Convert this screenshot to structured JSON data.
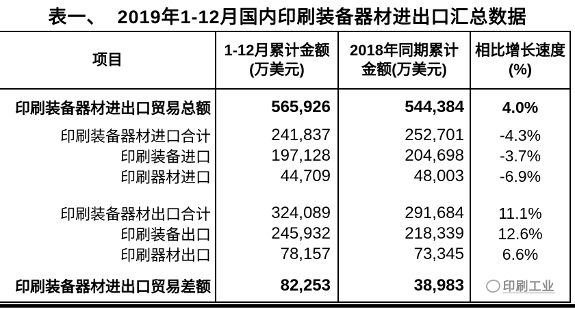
{
  "title": "表一、  2019年1-12月国内印刷装备器材进出口汇总数据",
  "table": {
    "headers": [
      {
        "line1": "项目",
        "line2": ""
      },
      {
        "line1": "1-12月累计金额",
        "line2": "(万美元)"
      },
      {
        "line1": "2018年同期累计",
        "line2": "金额(万美元)"
      },
      {
        "line1": "相比增长速度",
        "line2": "(%)"
      }
    ],
    "rows": [
      {
        "label": "印刷装备器材进出口贸易总额",
        "amount_2019": "565,926",
        "amount_2018": "544,384",
        "growth": "4.0%"
      },
      {
        "label": "印刷装备器材进口合计",
        "amount_2019": "241,837",
        "amount_2018": "252,701",
        "growth": "-4.3%"
      },
      {
        "label": "印刷装备进口",
        "amount_2019": "197,128",
        "amount_2018": "204,698",
        "growth": "-3.7%"
      },
      {
        "label": "印刷器材进口",
        "amount_2019": "44,709",
        "amount_2018": "48,003",
        "growth": "-6.9%"
      },
      {
        "label": "印刷装备器材出口合计",
        "amount_2019": "324,089",
        "amount_2018": "291,684",
        "growth": "11.1%"
      },
      {
        "label": "印刷装备出口",
        "amount_2019": "245,932",
        "amount_2018": "218,339",
        "growth": "12.6%"
      },
      {
        "label": "印刷器材出口",
        "amount_2019": "78,157",
        "amount_2018": "73,345",
        "growth": "6.6%"
      },
      {
        "label": "印刷装备器材进出口贸易差额",
        "amount_2019": "82,253",
        "amount_2018": "38,983",
        "growth": ""
      }
    ]
  },
  "watermark": {
    "text": "印刷工业"
  },
  "colors": {
    "border": "#000000",
    "text": "#000000",
    "watermark": "#8f8f8f",
    "background": "#ffffff"
  },
  "chart_data": {
    "type": "table",
    "title": "表一、 2019年1-12月国内印刷装备器材进出口汇总数据",
    "columns": [
      "项目",
      "1-12月累计金额(万美元)",
      "2018年同期累计金额(万美元)",
      "相比增长速度(%)"
    ],
    "rows": [
      {
        "项目": "印刷装备器材进出口贸易总额",
        "金额2019": 565926,
        "金额2018": 544384,
        "增长": "4.0%"
      },
      {
        "项目": "印刷装备器材进口合计",
        "金额2019": 241837,
        "金额2018": 252701,
        "增长": "-4.3%"
      },
      {
        "项目": "印刷装备进口",
        "金额2019": 197128,
        "金额2018": 204698,
        "增长": "-3.7%"
      },
      {
        "项目": "印刷器材进口",
        "金额2019": 44709,
        "金额2018": 48003,
        "增长": "-6.9%"
      },
      {
        "项目": "印刷装备器材出口合计",
        "金额2019": 324089,
        "金额2018": 291684,
        "增长": "11.1%"
      },
      {
        "项目": "印刷装备出口",
        "金额2019": 245932,
        "金额2018": 218339,
        "增长": "12.6%"
      },
      {
        "项目": "印刷器材出口",
        "金额2019": 78157,
        "金额2018": 73345,
        "增长": "6.6%"
      },
      {
        "项目": "印刷装备器材进出口贸易差额",
        "金额2019": 82253,
        "金额2018": 38983,
        "增长": ""
      }
    ],
    "notes": "bold rows: first (贸易总额) and last (贸易差额); growth of last row hidden behind watermark logo 印刷工业"
  }
}
